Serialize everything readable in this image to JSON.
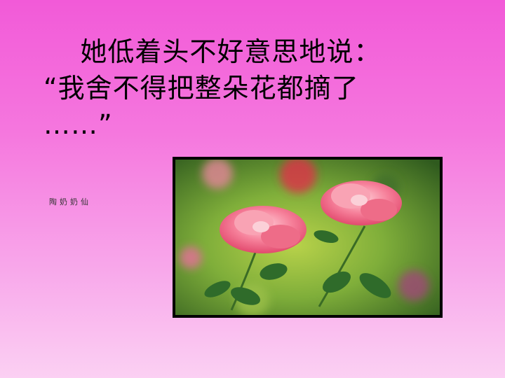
{
  "slide": {
    "title_line1": "    她低着头不好意思地说：",
    "title_line2": "“我舍不得把整朵花都摘了",
    "title_line3": "……”",
    "side_note": "陶奶奶仙"
  },
  "image": {
    "subject": "two pink roses",
    "colors": {
      "rose": "#f46b8a",
      "leaf": "#2f6b2a",
      "bg_green": "#7fae3a"
    }
  }
}
